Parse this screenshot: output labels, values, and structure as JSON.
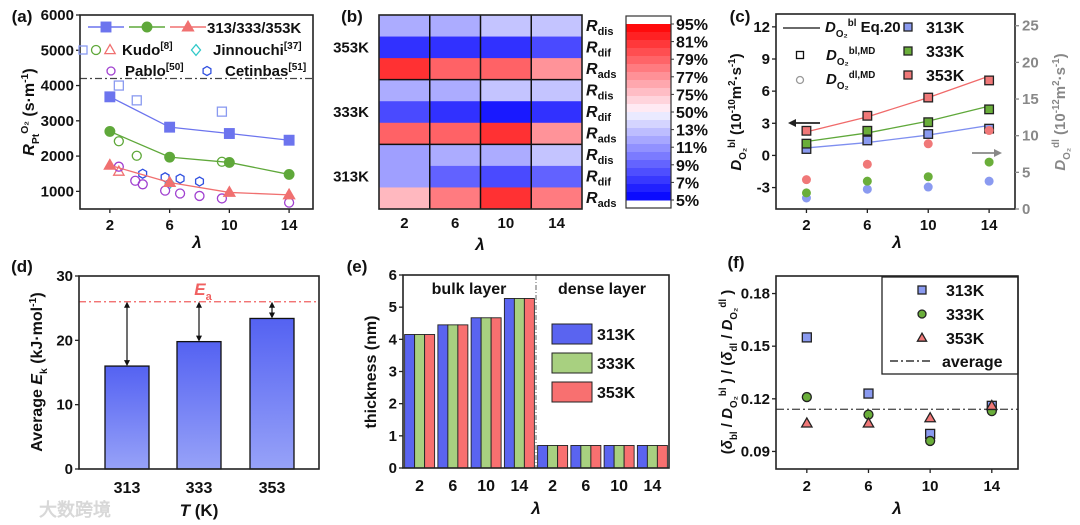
{
  "figure": {
    "watermark": "大数跨境"
  },
  "chart_data": [
    {
      "panel_label": "(a)",
      "type": "line",
      "xlabel": "λ",
      "ylabel": [
        {
          "t": "R",
          "s": "it"
        },
        {
          "t": "Pt",
          "s": "sub"
        },
        {
          "t": "O₂",
          "s": "sup"
        },
        {
          "t": " (s·m",
          "s": "n"
        },
        {
          "t": "-1",
          "s": "sup"
        },
        {
          "t": ")",
          "s": "n"
        }
      ],
      "xticks": [
        "2",
        "6",
        "10",
        "14"
      ],
      "yticks": [
        "1000",
        "2000",
        "3000",
        "4000",
        "5000",
        "6000"
      ],
      "xlim": [
        0,
        15.6
      ],
      "ylim": [
        500,
        6000
      ],
      "series_legend_label": "313/333/353K",
      "series": [
        {
          "name": "313K",
          "color": "#6c74ee",
          "marker": "square",
          "x": [
            2,
            6,
            10,
            14
          ],
          "y": [
            3680,
            2820,
            2640,
            2450
          ]
        },
        {
          "name": "333K",
          "color": "#5fa83a",
          "marker": "circle",
          "x": [
            2,
            6,
            10,
            14
          ],
          "y": [
            2700,
            1970,
            1820,
            1480
          ]
        },
        {
          "name": "353K",
          "color": "#f07070",
          "marker": "triangle",
          "x": [
            2,
            6,
            10,
            14
          ],
          "y": [
            1740,
            1250,
            970,
            900
          ]
        }
      ],
      "references": [
        {
          "name": "Kudo",
          "cite": "[8]",
          "points": [
            {
              "marker": "square",
              "color": "#8a9af0",
              "x": [
                2.6,
                3.8,
                9.5
              ],
              "y": [
                4000,
                3580,
                3260
              ]
            },
            {
              "marker": "circle",
              "color": "#5fa83a",
              "x": [
                2.6,
                3.8,
                9.5
              ],
              "y": [
                2420,
                2010,
                1840
              ]
            },
            {
              "marker": "triangle",
              "color": "#f07070",
              "x": [
                2.6
              ],
              "y": [
                1560
              ]
            }
          ]
        },
        {
          "name": "Jinnouchi",
          "cite": "[37]",
          "points": [
            {
              "marker": "diamond",
              "color": "#30c8c8",
              "x": [
                6
              ],
              "y": [
                1230
              ]
            }
          ]
        },
        {
          "name": "Pablo",
          "cite": "[50]",
          "points": [
            {
              "marker": "circle",
              "color": "#a040d0",
              "x": [
                2.6,
                3.7,
                4.2,
                5.7,
                6.7,
                8,
                9.5,
                14
              ],
              "y": [
                1700,
                1300,
                1200,
                1020,
                940,
                870,
                800,
                680
              ]
            }
          ]
        },
        {
          "name": "Cetinbas",
          "cite": "[51]",
          "points": [
            {
              "marker": "hexagon",
              "color": "#3050e0",
              "x": [
                4.2,
                5.7,
                6.7,
                8
              ],
              "y": [
                1500,
                1400,
                1360,
                1280
              ]
            }
          ]
        }
      ],
      "hline": 4200
    },
    {
      "panel_label": "(b)",
      "type": "heatmap",
      "xlabel": "λ",
      "xticks": [
        "2",
        "6",
        "10",
        "14"
      ],
      "groups": [
        {
          "label": "353K",
          "rows": [
            {
              "label": "R",
              "sub": "dis",
              "values": [
                12,
                12,
                13,
                13
              ]
            },
            {
              "label": "R",
              "sub": "dif",
              "values": [
                7,
                7,
                7,
                8
              ]
            },
            {
              "label": "R",
              "sub": "ads",
              "values": [
                81,
                79,
                79,
                77
              ]
            }
          ]
        },
        {
          "label": "333K",
          "rows": [
            {
              "label": "R",
              "sub": "dis",
              "values": [
                12,
                12,
                13,
                13
              ]
            },
            {
              "label": "R",
              "sub": "dif",
              "values": [
                8,
                7,
                6,
                7
              ]
            },
            {
              "label": "R",
              "sub": "ads",
              "values": [
                79,
                79,
                81,
                77
              ]
            }
          ]
        },
        {
          "label": "313K",
          "rows": [
            {
              "label": "R",
              "sub": "dis",
              "values": [
                11.5,
                12,
                12,
                13
              ]
            },
            {
              "label": "R",
              "sub": "dif",
              "values": [
                11.5,
                9,
                8,
                9
              ]
            },
            {
              "label": "R",
              "sub": "ads",
              "values": [
                75.5,
                78,
                81,
                78
              ]
            }
          ]
        }
      ],
      "colorbar": {
        "ticks": [
          "95%",
          "81%",
          "79%",
          "77%",
          "75%",
          "50%",
          "13%",
          "11%",
          "9%",
          "7%",
          "5%"
        ]
      }
    },
    {
      "panel_label": "(c)",
      "type": "line+scatter",
      "xlabel": "λ",
      "xticks": [
        "2",
        "6",
        "10",
        "14"
      ],
      "xlim": [
        0,
        15.7
      ],
      "ylabel_left": [
        {
          "t": "D",
          "s": "it"
        },
        {
          "t": "O₂",
          "s": "sub"
        },
        {
          "t": "bl",
          "s": "sup"
        },
        {
          "t": " (10",
          "s": "n"
        },
        {
          "t": "-10",
          "s": "sup"
        },
        {
          "t": "m",
          "s": "n"
        },
        {
          "t": "2",
          "s": "sup"
        },
        {
          "t": "·s",
          "s": "n"
        },
        {
          "t": "-1",
          "s": "sup"
        },
        {
          "t": ")",
          "s": "n"
        }
      ],
      "yticks_left": [
        "-3",
        "0",
        "3",
        "6",
        "9",
        "12"
      ],
      "ylim_left": [
        -5,
        13.2
      ],
      "ylabel_right": [
        {
          "t": "D",
          "s": "it"
        },
        {
          "t": "O₂",
          "s": "sub"
        },
        {
          "t": "dl",
          "s": "sup"
        },
        {
          "t": " (10",
          "s": "n"
        },
        {
          "t": "-12",
          "s": "sup"
        },
        {
          "t": "m",
          "s": "n"
        },
        {
          "t": "2",
          "s": "sup"
        },
        {
          "t": "·s",
          "s": "n"
        },
        {
          "t": "-1",
          "s": "sup"
        },
        {
          "t": ")",
          "s": "n"
        }
      ],
      "yticks_right": [
        "0",
        "5",
        "10",
        "15",
        "20",
        "25"
      ],
      "ylim_right": [
        0,
        26.6
      ],
      "legend": {
        "eq": [
          {
            "t": "D",
            "s": "it"
          },
          {
            "t": "O₂",
            "s": "sub"
          },
          {
            "t": "bl",
            "s": "sup"
          },
          {
            "t": " Eq.20",
            "s": "n"
          }
        ],
        "bl_md": [
          {
            "t": "D",
            "s": "it"
          },
          {
            "t": "O₂",
            "s": "sub"
          },
          {
            "t": "bl,MD",
            "s": "sup"
          }
        ],
        "dl_md": [
          {
            "t": "D",
            "s": "it"
          },
          {
            "t": "O₂",
            "s": "sub"
          },
          {
            "t": "dl,MD",
            "s": "sup"
          }
        ]
      },
      "x": [
        2,
        6,
        10,
        14
      ],
      "series": [
        {
          "name": "313K",
          "color": "#8a9af0",
          "line_color": "#7f8ff0",
          "bl_md": [
            0.6,
            1.4,
            2.0,
            2.5
          ],
          "eq20": [
            0.7,
            1.2,
            1.9,
            2.8
          ],
          "dl_md": [
            1.5,
            2.7,
            3.0,
            3.8
          ]
        },
        {
          "name": "333K",
          "color": "#6aae3a",
          "line_color": "#5fa83a",
          "bl_md": [
            1.1,
            2.3,
            3.1,
            4.3
          ],
          "eq20": [
            1.3,
            2.1,
            3.2,
            4.6
          ],
          "dl_md": [
            2.2,
            3.8,
            4.4,
            6.4
          ]
        },
        {
          "name": "353K",
          "color": "#f07878",
          "line_color": "#f06a6a",
          "bl_md": [
            2.3,
            3.7,
            5.4,
            7.0
          ],
          "eq20": [
            2.2,
            3.6,
            5.4,
            7.4
          ],
          "dl_md": [
            4.0,
            6.1,
            8.9,
            10.7
          ]
        }
      ]
    },
    {
      "panel_label": "(d)",
      "type": "bar",
      "categories": [
        "313",
        "333",
        "353"
      ],
      "values": [
        16.0,
        19.8,
        23.4
      ],
      "ylim": [
        0,
        30
      ],
      "yticks": [
        "0",
        "10",
        "20",
        "30"
      ],
      "ylabel": [
        {
          "t": "Average ",
          "s": "n"
        },
        {
          "t": "E",
          "s": "it"
        },
        {
          "t": "k",
          "s": "sub"
        },
        {
          "t": " (kJ·mol",
          "s": "n"
        },
        {
          "t": "-1",
          "s": "sup"
        },
        {
          "t": ")",
          "s": "n"
        }
      ],
      "xlabel": [
        {
          "t": "T",
          "s": "it"
        },
        {
          "t": " (K)",
          "s": "n"
        }
      ],
      "hline": {
        "value": 26,
        "label": [
          {
            "t": "E",
            "s": "it"
          },
          {
            "t": "a",
            "s": "sub"
          }
        ],
        "color": "#f06060"
      }
    },
    {
      "panel_label": "(e)",
      "type": "bar",
      "categories": [
        "2",
        "6",
        "10",
        "14",
        "2",
        "6",
        "10",
        "14"
      ],
      "sections": [
        "bulk layer",
        "dense layer"
      ],
      "series": [
        {
          "name": "313K",
          "color": "#5a64f0",
          "values": [
            4.15,
            4.45,
            4.67,
            5.27,
            0.7,
            0.7,
            0.7,
            0.7
          ]
        },
        {
          "name": "333K",
          "color": "#a8d080",
          "values": [
            4.15,
            4.45,
            4.67,
            5.27,
            0.7,
            0.7,
            0.7,
            0.7
          ]
        },
        {
          "name": "353K",
          "color": "#f87070",
          "values": [
            4.15,
            4.45,
            4.67,
            5.27,
            0.7,
            0.7,
            0.7,
            0.7
          ]
        }
      ],
      "ylim": [
        0,
        6
      ],
      "yticks": [
        "0",
        "1",
        "2",
        "3",
        "4",
        "5",
        "6"
      ],
      "ylabel": "thickness (nm)",
      "xlabel": "λ"
    },
    {
      "panel_label": "(f)",
      "type": "scatter",
      "xticks": [
        "2",
        "6",
        "10",
        "14"
      ],
      "xlim": [
        0,
        15.7
      ],
      "yticks": [
        "0.09",
        "0.12",
        "0.15",
        "0.18"
      ],
      "ylim": [
        0.08,
        0.19
      ],
      "xlabel": "λ",
      "ylabel": [
        {
          "t": "(",
          "s": "n"
        },
        {
          "t": "δ",
          "s": "it"
        },
        {
          "t": "bl",
          "s": "sub"
        },
        {
          "t": " / ",
          "s": "n"
        },
        {
          "t": "D",
          "s": "it"
        },
        {
          "t": "O₂",
          "s": "sub"
        },
        {
          "t": "bl",
          "s": "sup"
        },
        {
          "t": " ) / (",
          "s": "n"
        },
        {
          "t": "δ",
          "s": "it"
        },
        {
          "t": "dl",
          "s": "sub"
        },
        {
          "t": " / ",
          "s": "n"
        },
        {
          "t": "D",
          "s": "it"
        },
        {
          "t": "O₂",
          "s": "sub"
        },
        {
          "t": "dl",
          "s": "sup"
        },
        {
          "t": " )",
          "s": "n"
        }
      ],
      "series": [
        {
          "name": "313K",
          "marker": "square",
          "color": "#8a9af0",
          "x": [
            2,
            6,
            10,
            14
          ],
          "y": [
            0.155,
            0.123,
            0.1,
            0.116
          ]
        },
        {
          "name": "333K",
          "marker": "circle",
          "color": "#6aae3a",
          "x": [
            2,
            6,
            10,
            14
          ],
          "y": [
            0.121,
            0.111,
            0.096,
            0.113
          ]
        },
        {
          "name": "353K",
          "marker": "triangle",
          "color": "#f07878",
          "x": [
            2,
            6,
            10,
            14
          ],
          "y": [
            0.106,
            0.106,
            0.109,
            0.116
          ]
        }
      ],
      "average": {
        "value": 0.114,
        "label": "average"
      }
    }
  ]
}
